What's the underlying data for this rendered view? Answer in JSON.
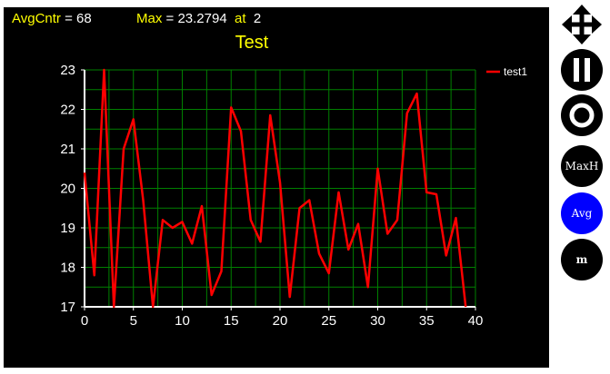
{
  "header": {
    "avg_label": "AvgCntr",
    "avg_text": " = 68",
    "max_label": "Max",
    "max_text": " = 23.2794",
    "at_label": "at",
    "at_text": "2"
  },
  "sidebar": {
    "move_icon": "four-arrows-move-icon",
    "pause_icon": "pause-icon",
    "record_icon": "record-circle-icon",
    "maxh_label": "MaxH",
    "avg_label": "Avg",
    "m_label": "m",
    "avg_active_color": "#0000ff"
  },
  "chart_data": {
    "type": "line",
    "title": "Test",
    "xlim": [
      0,
      40
    ],
    "ylim": [
      17,
      23
    ],
    "xticks": [
      0,
      5,
      10,
      15,
      20,
      25,
      30,
      35,
      40
    ],
    "yticks": [
      17,
      18,
      19,
      20,
      21,
      22,
      23
    ],
    "grid": true,
    "grid_color": "#008000",
    "legend_position": "top-right",
    "series": [
      {
        "name": "test1",
        "color": "#ff0000",
        "x": [
          0,
          1,
          2,
          3,
          4,
          5,
          6,
          7,
          8,
          9,
          10,
          11,
          12,
          13,
          14,
          15,
          16,
          17,
          18,
          19,
          20,
          21,
          22,
          23,
          24,
          25,
          26,
          27,
          28,
          29,
          30,
          31,
          32,
          33,
          34,
          35,
          36,
          37,
          38,
          39
        ],
        "values": [
          20.4,
          17.8,
          23.28,
          16.9,
          21.0,
          21.75,
          19.7,
          16.8,
          19.2,
          19.0,
          19.15,
          18.6,
          19.55,
          17.3,
          17.9,
          22.05,
          21.45,
          19.2,
          18.65,
          21.85,
          20.15,
          17.25,
          19.5,
          19.7,
          18.35,
          17.85,
          19.9,
          18.45,
          19.1,
          17.5,
          20.5,
          18.85,
          19.2,
          21.9,
          22.4,
          19.9,
          19.85,
          18.3,
          19.25,
          16.9
        ]
      }
    ]
  }
}
